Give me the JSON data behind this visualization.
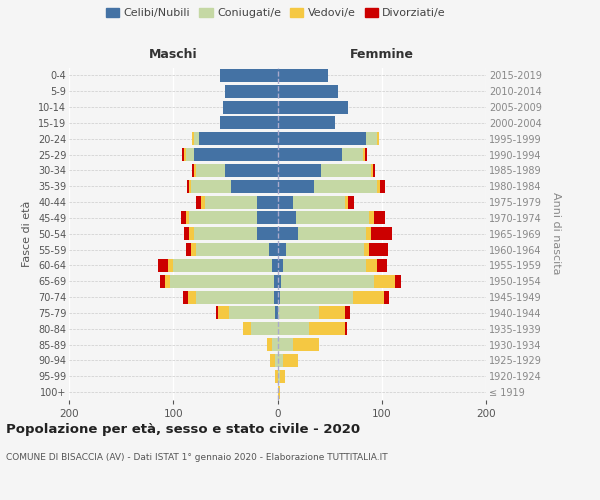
{
  "age_groups": [
    "100+",
    "95-99",
    "90-94",
    "85-89",
    "80-84",
    "75-79",
    "70-74",
    "65-69",
    "60-64",
    "55-59",
    "50-54",
    "45-49",
    "40-44",
    "35-39",
    "30-34",
    "25-29",
    "20-24",
    "15-19",
    "10-14",
    "5-9",
    "0-4"
  ],
  "birth_years": [
    "≤ 1919",
    "1920-1924",
    "1925-1929",
    "1930-1934",
    "1935-1939",
    "1940-1944",
    "1945-1949",
    "1950-1954",
    "1955-1959",
    "1960-1964",
    "1965-1969",
    "1970-1974",
    "1975-1979",
    "1980-1984",
    "1985-1989",
    "1990-1994",
    "1995-1999",
    "2000-2004",
    "2005-2009",
    "2010-2014",
    "2015-2019"
  ],
  "maschi_celibi": [
    0,
    0,
    0,
    0,
    0,
    2,
    3,
    3,
    5,
    8,
    20,
    20,
    20,
    45,
    50,
    80,
    75,
    55,
    52,
    50,
    55
  ],
  "maschi_coniugati": [
    0,
    0,
    2,
    5,
    25,
    45,
    75,
    100,
    95,
    70,
    60,
    65,
    50,
    38,
    28,
    8,
    5,
    0,
    0,
    0,
    0
  ],
  "maschi_vedovi": [
    0,
    2,
    5,
    5,
    8,
    10,
    8,
    5,
    5,
    5,
    5,
    3,
    3,
    2,
    2,
    2,
    2,
    0,
    0,
    0,
    0
  ],
  "maschi_divorziati": [
    0,
    0,
    0,
    0,
    0,
    2,
    5,
    5,
    10,
    5,
    5,
    5,
    5,
    2,
    2,
    2,
    0,
    0,
    0,
    0,
    0
  ],
  "femmine_celibi": [
    0,
    0,
    0,
    0,
    0,
    0,
    2,
    3,
    5,
    8,
    20,
    18,
    15,
    35,
    42,
    62,
    85,
    55,
    68,
    58,
    48
  ],
  "femmine_coniugati": [
    0,
    2,
    5,
    15,
    30,
    40,
    70,
    90,
    80,
    75,
    65,
    70,
    50,
    60,
    48,
    20,
    10,
    0,
    0,
    0,
    0
  ],
  "femmine_vedovi": [
    2,
    5,
    15,
    25,
    35,
    25,
    30,
    20,
    10,
    5,
    5,
    5,
    3,
    3,
    2,
    2,
    2,
    0,
    0,
    0,
    0
  ],
  "femmine_divorziati": [
    0,
    0,
    0,
    0,
    2,
    5,
    5,
    5,
    10,
    18,
    20,
    10,
    5,
    5,
    2,
    2,
    0,
    0,
    0,
    0,
    0
  ],
  "colors": {
    "celibi": "#4472a4",
    "coniugati": "#c5d8a4",
    "vedovi": "#f5c842",
    "divorziati": "#cc0000"
  },
  "xlim": 200,
  "title": "Popolazione per età, sesso e stato civile - 2020",
  "subtitle": "COMUNE DI BISACCIA (AV) - Dati ISTAT 1° gennaio 2020 - Elaborazione TUTTITALIA.IT",
  "ylabel_left": "Fasce di età",
  "ylabel_right": "Anni di nascita",
  "xlabel_maschi": "Maschi",
  "xlabel_femmine": "Femmine",
  "legend_labels": [
    "Celibi/Nubili",
    "Coniugati/e",
    "Vedovi/e",
    "Divorziati/e"
  ],
  "background_color": "#f5f5f5"
}
